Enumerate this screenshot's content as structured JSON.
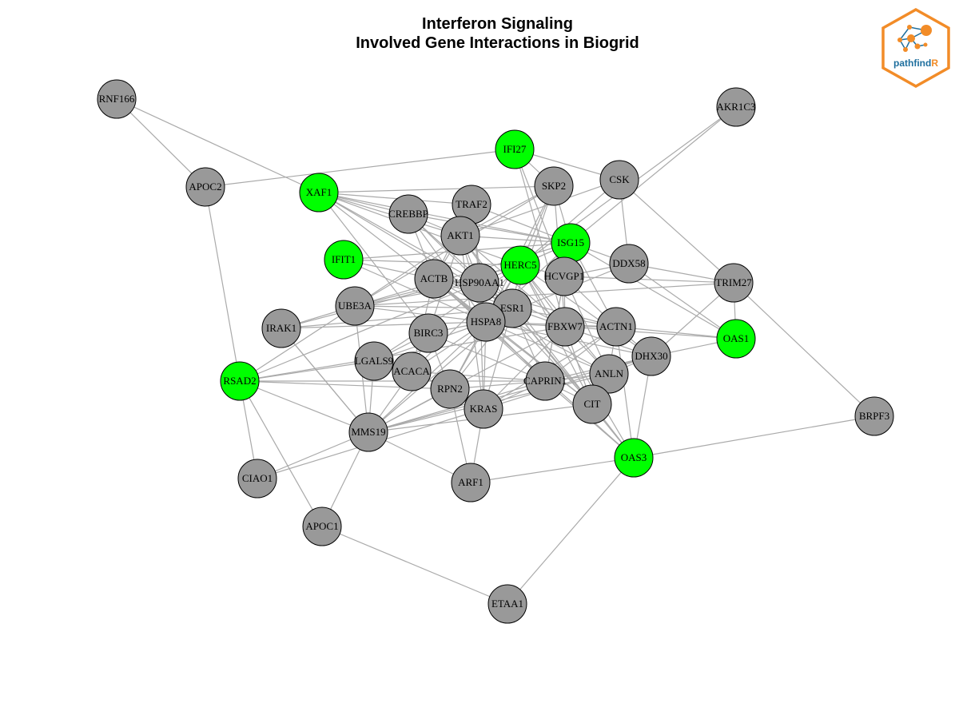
{
  "title": {
    "line1": "Interferon Signaling",
    "line2": "Involved Gene Interactions in Biogrid"
  },
  "logo": {
    "text_main": "pathfind",
    "text_accent": "R",
    "colors": {
      "border": "#f28c28",
      "text_main": "#1f6f9e",
      "text_accent": "#f28c28",
      "node": "#f28c28",
      "edge": "#1f6f9e"
    }
  },
  "colors": {
    "highlight_node": "#00ff00",
    "normal_node": "#999999",
    "edge": "#aaaaaa",
    "node_border": "#000000",
    "label": "#000000"
  },
  "network": {
    "nodes": [
      {
        "id": "RNF166",
        "highlight": false
      },
      {
        "id": "AKR1C3",
        "highlight": false
      },
      {
        "id": "IFI27",
        "highlight": true
      },
      {
        "id": "APOC2",
        "highlight": false
      },
      {
        "id": "XAF1",
        "highlight": true
      },
      {
        "id": "SKP2",
        "highlight": false
      },
      {
        "id": "CSK",
        "highlight": false
      },
      {
        "id": "TRAF2",
        "highlight": false
      },
      {
        "id": "CREBBP",
        "highlight": false
      },
      {
        "id": "AKT1",
        "highlight": false
      },
      {
        "id": "ISG15",
        "highlight": true
      },
      {
        "id": "IFIT1",
        "highlight": true
      },
      {
        "id": "HERC5",
        "highlight": true
      },
      {
        "id": "DDX58",
        "highlight": false
      },
      {
        "id": "ACTB",
        "highlight": false
      },
      {
        "id": "HSP90AA1",
        "highlight": false
      },
      {
        "id": "HCVGP1",
        "highlight": false
      },
      {
        "id": "TRIM27",
        "highlight": false
      },
      {
        "id": "UBE3A",
        "highlight": false
      },
      {
        "id": "ESR1",
        "highlight": false
      },
      {
        "id": "IRAK1",
        "highlight": false
      },
      {
        "id": "HSPA8",
        "highlight": false
      },
      {
        "id": "FBXW7",
        "highlight": false
      },
      {
        "id": "ACTN1",
        "highlight": false
      },
      {
        "id": "OAS1",
        "highlight": true
      },
      {
        "id": "BIRC3",
        "highlight": false
      },
      {
        "id": "DHX30",
        "highlight": false
      },
      {
        "id": "LGALS9",
        "highlight": false
      },
      {
        "id": "ACACA",
        "highlight": false
      },
      {
        "id": "ANLN",
        "highlight": false
      },
      {
        "id": "RSAD2",
        "highlight": true
      },
      {
        "id": "CAPRIN1",
        "highlight": false
      },
      {
        "id": "RPN2",
        "highlight": false
      },
      {
        "id": "CIT",
        "highlight": false
      },
      {
        "id": "KRAS",
        "highlight": false
      },
      {
        "id": "BRPF3",
        "highlight": false
      },
      {
        "id": "MMS19",
        "highlight": false
      },
      {
        "id": "OAS3",
        "highlight": true
      },
      {
        "id": "CIAO1",
        "highlight": false
      },
      {
        "id": "ARF1",
        "highlight": false
      },
      {
        "id": "APOC1",
        "highlight": false
      },
      {
        "id": "ETAA1",
        "highlight": false
      }
    ],
    "edges": [
      [
        "RNF166",
        "APOC2"
      ],
      [
        "RNF166",
        "XAF1"
      ],
      [
        "APOC2",
        "IFI27"
      ],
      [
        "APOC2",
        "RSAD2"
      ],
      [
        "AKR1C3",
        "ISG15"
      ],
      [
        "AKR1C3",
        "HERC5"
      ],
      [
        "IFI27",
        "CSK"
      ],
      [
        "IFI27",
        "SKP2"
      ],
      [
        "IFI27",
        "HCVGP1"
      ],
      [
        "IFI27",
        "FBXW7"
      ],
      [
        "CSK",
        "TRIM27"
      ],
      [
        "CSK",
        "DDX58"
      ],
      [
        "CSK",
        "AKT1"
      ],
      [
        "CSK",
        "HERC5"
      ],
      [
        "XAF1",
        "TRAF2"
      ],
      [
        "XAF1",
        "CREBBP"
      ],
      [
        "XAF1",
        "AKT1"
      ],
      [
        "XAF1",
        "HSP90AA1"
      ],
      [
        "XAF1",
        "ISG15"
      ],
      [
        "XAF1",
        "HERC5"
      ],
      [
        "XAF1",
        "BIRC3"
      ],
      [
        "XAF1",
        "SKP2"
      ],
      [
        "XAF1",
        "ESR1"
      ],
      [
        "XAF1",
        "HSPA8"
      ],
      [
        "SKP2",
        "AKT1"
      ],
      [
        "SKP2",
        "HSPA8"
      ],
      [
        "SKP2",
        "ESR1"
      ],
      [
        "SKP2",
        "HERC5"
      ],
      [
        "SKP2",
        "ISG15"
      ],
      [
        "SKP2",
        "UBE3A"
      ],
      [
        "SKP2",
        "FBXW7"
      ],
      [
        "TRAF2",
        "AKT1"
      ],
      [
        "TRAF2",
        "BIRC3"
      ],
      [
        "TRAF2",
        "HSP90AA1"
      ],
      [
        "TRAF2",
        "ISG15"
      ],
      [
        "TRAF2",
        "HSPA8"
      ],
      [
        "TRAF2",
        "ACTB"
      ],
      [
        "CREBBP",
        "AKT1"
      ],
      [
        "CREBBP",
        "ESR1"
      ],
      [
        "CREBBP",
        "HSP90AA1"
      ],
      [
        "CREBBP",
        "ACTB"
      ],
      [
        "CREBBP",
        "ISG15"
      ],
      [
        "CREBBP",
        "HSPA8"
      ],
      [
        "AKT1",
        "HSP90AA1"
      ],
      [
        "AKT1",
        "ESR1"
      ],
      [
        "AKT1",
        "HSPA8"
      ],
      [
        "AKT1",
        "FBXW7"
      ],
      [
        "AKT1",
        "ACTB"
      ],
      [
        "AKT1",
        "UBE3A"
      ],
      [
        "AKT1",
        "KRAS"
      ],
      [
        "AKT1",
        "ISG15"
      ],
      [
        "AKT1",
        "CIT"
      ],
      [
        "ISG15",
        "HERC5"
      ],
      [
        "ISG15",
        "DDX58"
      ],
      [
        "ISG15",
        "HCVGP1"
      ],
      [
        "ISG15",
        "UBE3A"
      ],
      [
        "ISG15",
        "HSPA8"
      ],
      [
        "ISG15",
        "ACTN1"
      ],
      [
        "ISG15",
        "OAS1"
      ],
      [
        "ISG15",
        "IFIT1"
      ],
      [
        "ISG15",
        "CAPRIN1"
      ],
      [
        "ISG15",
        "HSP90AA1"
      ],
      [
        "IFIT1",
        "HERC5"
      ],
      [
        "IFIT1",
        "HSPA8"
      ],
      [
        "IFIT1",
        "ACTB"
      ],
      [
        "HERC5",
        "HCVGP1"
      ],
      [
        "HERC5",
        "UBE3A"
      ],
      [
        "HERC5",
        "HSPA8"
      ],
      [
        "HERC5",
        "ESR1"
      ],
      [
        "HERC5",
        "FBXW7"
      ],
      [
        "HERC5",
        "IRAK1"
      ],
      [
        "HERC5",
        "LGALS9"
      ],
      [
        "HERC5",
        "DHX30"
      ],
      [
        "HERC5",
        "ANLN"
      ],
      [
        "HERC5",
        "CIT"
      ],
      [
        "HERC5",
        "OAS3"
      ],
      [
        "HERC5",
        "ACACA"
      ],
      [
        "HERC5",
        "RPN2"
      ],
      [
        "DDX58",
        "TRIM27"
      ],
      [
        "DDX58",
        "HCVGP1"
      ],
      [
        "DDX58",
        "HSPA8"
      ],
      [
        "DDX58",
        "OAS1"
      ],
      [
        "ACTB",
        "HSP90AA1"
      ],
      [
        "ACTB",
        "ACTN1"
      ],
      [
        "ACTB",
        "HSPA8"
      ],
      [
        "ACTB",
        "ESR1"
      ],
      [
        "ACTB",
        "ACACA"
      ],
      [
        "ACTB",
        "CAPRIN1"
      ],
      [
        "ACTB",
        "CIT"
      ],
      [
        "ACTB",
        "OAS3"
      ],
      [
        "ACTB",
        "ANLN"
      ],
      [
        "HSP90AA1",
        "HSPA8"
      ],
      [
        "HSP90AA1",
        "ESR1"
      ],
      [
        "HSP90AA1",
        "FBXW7"
      ],
      [
        "HSP90AA1",
        "UBE3A"
      ],
      [
        "HSP90AA1",
        "KRAS"
      ],
      [
        "HSP90AA1",
        "CIT"
      ],
      [
        "HSP90AA1",
        "RSAD2"
      ],
      [
        "HCVGP1",
        "FBXW7"
      ],
      [
        "HCVGP1",
        "ACTN1"
      ],
      [
        "HCVGP1",
        "TRIM27"
      ],
      [
        "HCVGP1",
        "ANLN"
      ],
      [
        "HCVGP1",
        "CAPRIN1"
      ],
      [
        "TRIM27",
        "OAS1"
      ],
      [
        "TRIM27",
        "BRPF3"
      ],
      [
        "TRIM27",
        "DHX30"
      ],
      [
        "TRIM27",
        "UBE3A"
      ],
      [
        "UBE3A",
        "ESR1"
      ],
      [
        "UBE3A",
        "HSPA8"
      ],
      [
        "UBE3A",
        "IRAK1"
      ],
      [
        "UBE3A",
        "RSAD2"
      ],
      [
        "UBE3A",
        "MMS19"
      ],
      [
        "ESR1",
        "HSPA8"
      ],
      [
        "ESR1",
        "FBXW7"
      ],
      [
        "ESR1",
        "ACTN1"
      ],
      [
        "ESR1",
        "CIT"
      ],
      [
        "ESR1",
        "KRAS"
      ],
      [
        "ESR1",
        "RPN2"
      ],
      [
        "ESR1",
        "CAPRIN1"
      ],
      [
        "ESR1",
        "OAS3"
      ],
      [
        "ESR1",
        "IRAK1"
      ],
      [
        "ESR1",
        "MMS19"
      ],
      [
        "IRAK1",
        "HSPA8"
      ],
      [
        "IRAK1",
        "MMS19"
      ],
      [
        "HSPA8",
        "FBXW7"
      ],
      [
        "HSPA8",
        "ACTN1"
      ],
      [
        "HSPA8",
        "KRAS"
      ],
      [
        "HSPA8",
        "RPN2"
      ],
      [
        "HSPA8",
        "CIT"
      ],
      [
        "HSPA8",
        "CAPRIN1"
      ],
      [
        "HSPA8",
        "ACACA"
      ],
      [
        "HSPA8",
        "LGALS9"
      ],
      [
        "HSPA8",
        "MMS19"
      ],
      [
        "HSPA8",
        "DHX30"
      ],
      [
        "HSPA8",
        "ANLN"
      ],
      [
        "HSPA8",
        "BIRC3"
      ],
      [
        "FBXW7",
        "ACTN1"
      ],
      [
        "FBXW7",
        "CIT"
      ],
      [
        "FBXW7",
        "KRAS"
      ],
      [
        "FBXW7",
        "DHX30"
      ],
      [
        "FBXW7",
        "MMS19"
      ],
      [
        "FBXW7",
        "OAS1"
      ],
      [
        "FBXW7",
        "ANLN"
      ],
      [
        "FBXW7",
        "RSAD2"
      ],
      [
        "ACTN1",
        "OAS1"
      ],
      [
        "ACTN1",
        "DHX30"
      ],
      [
        "ACTN1",
        "ANLN"
      ],
      [
        "ACTN1",
        "CAPRIN1"
      ],
      [
        "ACTN1",
        "KRAS"
      ],
      [
        "ACTN1",
        "OAS3"
      ],
      [
        "OAS1",
        "DHX30"
      ],
      [
        "BIRC3",
        "RPN2"
      ],
      [
        "BIRC3",
        "LGALS9"
      ],
      [
        "BIRC3",
        "ACACA"
      ],
      [
        "BIRC3",
        "CAPRIN1"
      ],
      [
        "DHX30",
        "OAS3"
      ],
      [
        "DHX30",
        "ANLN"
      ],
      [
        "DHX30",
        "CAPRIN1"
      ],
      [
        "DHX30",
        "MMS19"
      ],
      [
        "DHX30",
        "KRAS"
      ],
      [
        "LGALS9",
        "ACACA"
      ],
      [
        "LGALS9",
        "RSAD2"
      ],
      [
        "LGALS9",
        "MMS19"
      ],
      [
        "ACACA",
        "RPN2"
      ],
      [
        "ACACA",
        "MMS19"
      ],
      [
        "ACACA",
        "CAPRIN1"
      ],
      [
        "ANLN",
        "CIT"
      ],
      [
        "ANLN",
        "CAPRIN1"
      ],
      [
        "ANLN",
        "MMS19"
      ],
      [
        "RSAD2",
        "CIAO1"
      ],
      [
        "RSAD2",
        "APOC1"
      ],
      [
        "RSAD2",
        "RPN2"
      ],
      [
        "RSAD2",
        "MMS19"
      ],
      [
        "RSAD2",
        "CAPRIN1"
      ],
      [
        "CAPRIN1",
        "RPN2"
      ],
      [
        "CAPRIN1",
        "CIT"
      ],
      [
        "CAPRIN1",
        "OAS3"
      ],
      [
        "CAPRIN1",
        "MMS19"
      ],
      [
        "CAPRIN1",
        "KRAS"
      ],
      [
        "RPN2",
        "KRAS"
      ],
      [
        "RPN2",
        "ARF1"
      ],
      [
        "RPN2",
        "MMS19"
      ],
      [
        "CIT",
        "OAS3"
      ],
      [
        "CIT",
        "MMS19"
      ],
      [
        "KRAS",
        "ARF1"
      ],
      [
        "KRAS",
        "CIAO1"
      ],
      [
        "MMS19",
        "CIAO1"
      ],
      [
        "MMS19",
        "APOC1"
      ],
      [
        "MMS19",
        "ARF1"
      ],
      [
        "MMS19",
        "IRAK1"
      ],
      [
        "OAS3",
        "BRPF3"
      ],
      [
        "OAS3",
        "ARF1"
      ],
      [
        "OAS3",
        "ETAA1"
      ],
      [
        "APOC1",
        "ETAA1"
      ]
    ]
  }
}
